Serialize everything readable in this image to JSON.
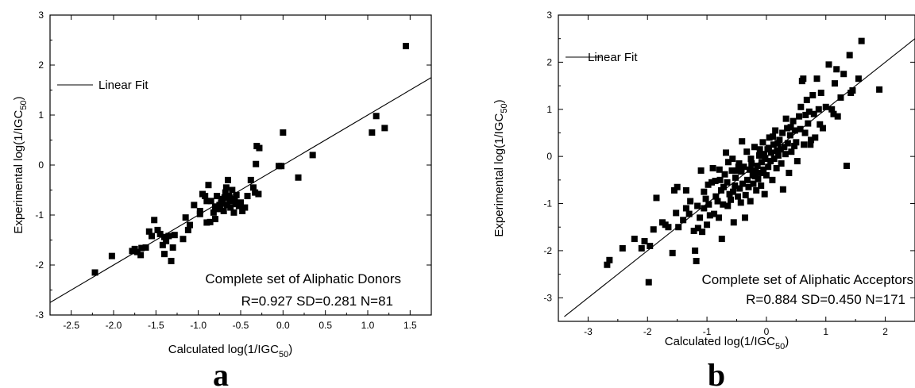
{
  "chart_data": [
    {
      "type": "scatter",
      "panel_label": "a",
      "xlabel": {
        "text": "Calculated log(1/IGC",
        "sub": "50",
        "close": ")"
      },
      "ylabel": {
        "text": "Experimental log(1/IGC",
        "sub": "50",
        "close": ")"
      },
      "xlim": [
        -2.75,
        1.75
      ],
      "ylim": [
        -3,
        3
      ],
      "xticks": [
        -2.5,
        -2.0,
        -1.5,
        -1.0,
        -0.5,
        0.0,
        0.5,
        1.0,
        1.5
      ],
      "xtick_labels": [
        "-2.5",
        "-2.0",
        "-1.5",
        "-1.0",
        "-0.5",
        "0.0",
        "0.5",
        "1.0",
        "1.5"
      ],
      "yticks": [
        -3,
        -2,
        -1,
        0,
        1,
        2,
        3
      ],
      "ytick_labels": [
        "-3",
        "-2",
        "-1",
        "0",
        "1",
        "2",
        "3"
      ],
      "legend": {
        "label": "Linear Fit",
        "position": "top-left"
      },
      "fit_line": {
        "x": [
          -2.75,
          1.75
        ],
        "y": [
          -2.75,
          1.75
        ]
      },
      "annotation": {
        "line1": "Complete set of Aliphatic Donors",
        "line2": "R=0.927 SD=0.281 N=81"
      },
      "points": [
        [
          -2.22,
          -2.15
        ],
        [
          -2.02,
          -1.82
        ],
        [
          -1.78,
          -1.72
        ],
        [
          -1.75,
          -1.68
        ],
        [
          -1.72,
          -1.74
        ],
        [
          -1.68,
          -1.8
        ],
        [
          -1.62,
          -1.65
        ],
        [
          -1.58,
          -1.33
        ],
        [
          -1.55,
          -1.42
        ],
        [
          -1.52,
          -1.1
        ],
        [
          -1.48,
          -1.3
        ],
        [
          -1.45,
          -1.38
        ],
        [
          -1.42,
          -1.6
        ],
        [
          -1.4,
          -1.78
        ],
        [
          -1.38,
          -1.52
        ],
        [
          -1.35,
          -1.42
        ],
        [
          -1.32,
          -1.92
        ],
        [
          -1.3,
          -1.65
        ],
        [
          -1.28,
          -1.4
        ],
        [
          -1.18,
          -1.48
        ],
        [
          -1.15,
          -1.05
        ],
        [
          -1.12,
          -1.3
        ],
        [
          -1.1,
          -1.2
        ],
        [
          -1.05,
          -0.8
        ],
        [
          -0.98,
          -0.92
        ],
        [
          -0.95,
          -0.58
        ],
        [
          -0.92,
          -0.62
        ],
        [
          -0.9,
          -1.15
        ],
        [
          -0.88,
          -0.4
        ],
        [
          -0.85,
          -0.72
        ],
        [
          -0.82,
          -0.95
        ],
        [
          -0.8,
          -1.08
        ],
        [
          -0.78,
          -0.62
        ],
        [
          -0.76,
          -0.88
        ],
        [
          -0.75,
          -0.8
        ],
        [
          -0.73,
          -0.75
        ],
        [
          -0.72,
          -0.68
        ],
        [
          -0.7,
          -0.92
        ],
        [
          -0.68,
          -0.55
        ],
        [
          -0.67,
          -0.45
        ],
        [
          -0.66,
          -0.8
        ],
        [
          -0.65,
          -0.3
        ],
        [
          -0.64,
          -0.62
        ],
        [
          -0.63,
          -0.72
        ],
        [
          -0.62,
          -0.85
        ],
        [
          -0.6,
          -0.5
        ],
        [
          -0.58,
          -0.95
        ],
        [
          -0.56,
          -0.78
        ],
        [
          -0.55,
          -0.6
        ],
        [
          -0.52,
          -0.82
        ],
        [
          -0.5,
          -0.75
        ],
        [
          -0.48,
          -0.92
        ],
        [
          -0.45,
          -0.85
        ],
        [
          -0.42,
          -0.62
        ],
        [
          -0.38,
          -0.3
        ],
        [
          -0.35,
          -0.45
        ],
        [
          -0.33,
          -0.55
        ],
        [
          -0.32,
          0.02
        ],
        [
          -0.31,
          0.38
        ],
        [
          -0.29,
          -0.58
        ],
        [
          -0.28,
          0.34
        ],
        [
          -0.05,
          -0.02
        ],
        [
          -0.02,
          -0.02
        ],
        [
          0.0,
          0.65
        ],
        [
          0.18,
          -0.25
        ],
        [
          0.35,
          0.2
        ],
        [
          1.05,
          0.65
        ],
        [
          1.1,
          0.98
        ],
        [
          1.2,
          0.74
        ],
        [
          1.45,
          2.38
        ],
        [
          -0.98,
          -0.98
        ],
        [
          -0.86,
          -1.14
        ],
        [
          -0.8,
          -0.83
        ],
        [
          -0.74,
          -0.87
        ],
        [
          -0.71,
          -0.77
        ],
        [
          -0.69,
          -0.65
        ],
        [
          -0.61,
          -0.7
        ],
        [
          -0.57,
          -0.67
        ],
        [
          -1.4,
          -1.44
        ],
        [
          -1.67,
          -1.66
        ],
        [
          -0.9,
          -0.72
        ]
      ]
    },
    {
      "type": "scatter",
      "panel_label": "b",
      "xlabel": {
        "text": "Calculated log(1/IGC",
        "sub": "50",
        "close": ")"
      },
      "ylabel": {
        "text": "Experimental log(1/IGC",
        "sub": "50",
        "close": ")"
      },
      "xlim": [
        -3.5,
        2.5
      ],
      "ylim": [
        -3.5,
        3
      ],
      "xticks": [
        -3,
        -2,
        -1,
        0,
        1,
        2
      ],
      "xtick_labels": [
        "-3",
        "-2",
        "-1",
        "0",
        "1",
        "2"
      ],
      "yticks": [
        -3,
        -2,
        -1,
        0,
        1,
        2,
        3
      ],
      "ytick_labels": [
        "-3",
        "-2",
        "-1",
        "0",
        "1",
        "2",
        "3"
      ],
      "legend": {
        "label": "Linear Fit",
        "position": "top-left"
      },
      "fit_line": {
        "x": [
          -3.4,
          2.5
        ],
        "y": [
          -3.4,
          2.5
        ]
      },
      "annotation": {
        "line1": "Complete set of Aliphatic Acceptors",
        "line2": "R=0.884 SD=0.450 N=171"
      },
      "points": [
        [
          -2.68,
          -2.3
        ],
        [
          -2.64,
          -2.2
        ],
        [
          -2.42,
          -1.95
        ],
        [
          -2.22,
          -1.75
        ],
        [
          -2.1,
          -1.95
        ],
        [
          -2.05,
          -1.8
        ],
        [
          -1.98,
          -2.67
        ],
        [
          -1.96,
          -1.9
        ],
        [
          -1.85,
          -0.88
        ],
        [
          -1.7,
          -1.45
        ],
        [
          -1.65,
          -1.5
        ],
        [
          -1.58,
          -2.05
        ],
        [
          -1.55,
          -0.72
        ],
        [
          -1.52,
          -1.2
        ],
        [
          -1.5,
          -0.65
        ],
        [
          -1.48,
          -1.5
        ],
        [
          -1.4,
          -1.35
        ],
        [
          -1.35,
          -0.72
        ],
        [
          -1.3,
          -1.22
        ],
        [
          -1.22,
          -1.58
        ],
        [
          -1.2,
          -2.0
        ],
        [
          -1.18,
          -2.22
        ],
        [
          -1.16,
          -1.05
        ],
        [
          -1.15,
          -1.52
        ],
        [
          -1.12,
          -1.3
        ],
        [
          -1.1,
          -0.3
        ],
        [
          -1.08,
          -1.6
        ],
        [
          -1.05,
          -0.75
        ],
        [
          -1.02,
          -0.9
        ],
        [
          -1.0,
          -1.45
        ],
        [
          -0.98,
          -0.6
        ],
        [
          -0.95,
          -1.25
        ],
        [
          -0.92,
          -0.55
        ],
        [
          -0.9,
          -0.25
        ],
        [
          -0.88,
          -1.22
        ],
        [
          -0.85,
          -0.85
        ],
        [
          -0.82,
          -0.95
        ],
        [
          -0.8,
          -1.3
        ],
        [
          -0.78,
          -0.5
        ],
        [
          -0.76,
          -0.72
        ],
        [
          -0.75,
          -1.75
        ],
        [
          -0.73,
          -1.02
        ],
        [
          -0.72,
          -0.65
        ],
        [
          -0.7,
          -0.38
        ],
        [
          -0.68,
          0.08
        ],
        [
          -0.66,
          -0.55
        ],
        [
          -0.65,
          -1.05
        ],
        [
          -0.62,
          -0.8
        ],
        [
          -0.6,
          -0.92
        ],
        [
          -0.58,
          -0.3
        ],
        [
          -0.56,
          -0.75
        ],
        [
          -0.55,
          -1.4
        ],
        [
          -0.53,
          -0.62
        ],
        [
          -0.52,
          -0.45
        ],
        [
          -0.5,
          -0.3
        ],
        [
          -0.48,
          -0.85
        ],
        [
          -0.46,
          -0.15
        ],
        [
          -0.45,
          -0.68
        ],
        [
          -0.43,
          -0.98
        ],
        [
          -0.42,
          -0.32
        ],
        [
          -0.4,
          -0.58
        ],
        [
          -0.38,
          -0.22
        ],
        [
          -0.36,
          -1.3
        ],
        [
          -0.35,
          -0.82
        ],
        [
          -0.33,
          0.1
        ],
        [
          -0.32,
          -0.5
        ],
        [
          -0.3,
          -0.65
        ],
        [
          -0.28,
          -0.28
        ],
        [
          -0.27,
          -0.95
        ],
        [
          -0.25,
          -0.15
        ],
        [
          -0.23,
          -0.4
        ],
        [
          -0.22,
          -0.58
        ],
        [
          -0.2,
          0.2
        ],
        [
          -0.18,
          -0.3
        ],
        [
          -0.17,
          -0.72
        ],
        [
          -0.15,
          -0.2
        ],
        [
          -0.14,
          -0.48
        ],
        [
          -0.12,
          0.02
        ],
        [
          -0.1,
          -0.35
        ],
        [
          -0.09,
          -0.62
        ],
        [
          -0.08,
          -0.12
        ],
        [
          -0.06,
          0.3
        ],
        [
          -0.05,
          -0.28
        ],
        [
          -0.03,
          -0.8
        ],
        [
          -0.02,
          -0.05
        ],
        [
          0.0,
          -0.4
        ],
        [
          0.02,
          0.15
        ],
        [
          0.03,
          -0.22
        ],
        [
          0.05,
          0.4
        ],
        [
          0.07,
          -0.1
        ],
        [
          0.08,
          0.08
        ],
        [
          0.1,
          -0.5
        ],
        [
          0.12,
          0.25
        ],
        [
          0.13,
          -0.05
        ],
        [
          0.15,
          0.55
        ],
        [
          0.17,
          -0.25
        ],
        [
          0.18,
          0.12
        ],
        [
          0.2,
          0.02
        ],
        [
          0.22,
          0.35
        ],
        [
          0.25,
          -0.15
        ],
        [
          0.27,
          0.5
        ],
        [
          0.28,
          -0.7
        ],
        [
          0.3,
          0.2
        ],
        [
          0.32,
          0.05
        ],
        [
          0.35,
          0.6
        ],
        [
          0.36,
          0.28
        ],
        [
          0.38,
          -0.35
        ],
        [
          0.4,
          0.45
        ],
        [
          0.42,
          0.1
        ],
        [
          0.45,
          0.75
        ],
        [
          0.48,
          0.55
        ],
        [
          0.5,
          0.3
        ],
        [
          0.52,
          -0.1
        ],
        [
          0.55,
          0.85
        ],
        [
          0.57,
          0.58
        ],
        [
          0.58,
          1.05
        ],
        [
          0.6,
          1.6
        ],
        [
          0.62,
          1.65
        ],
        [
          0.63,
          0.25
        ],
        [
          0.65,
          0.5
        ],
        [
          0.68,
          1.2
        ],
        [
          0.7,
          0.7
        ],
        [
          0.72,
          0.95
        ],
        [
          0.75,
          0.35
        ],
        [
          0.78,
          1.3
        ],
        [
          0.8,
          0.9
        ],
        [
          0.82,
          0.4
        ],
        [
          0.85,
          1.65
        ],
        [
          0.88,
          1.0
        ],
        [
          0.9,
          0.68
        ],
        [
          0.92,
          1.35
        ],
        [
          0.95,
          0.6
        ],
        [
          1.0,
          1.05
        ],
        [
          1.05,
          1.95
        ],
        [
          1.1,
          1.0
        ],
        [
          1.13,
          0.9
        ],
        [
          1.15,
          1.55
        ],
        [
          1.18,
          1.85
        ],
        [
          1.2,
          0.85
        ],
        [
          1.3,
          1.75
        ],
        [
          1.35,
          -0.2
        ],
        [
          1.4,
          2.15
        ],
        [
          1.42,
          1.35
        ],
        [
          1.45,
          1.4
        ],
        [
          1.55,
          1.65
        ],
        [
          1.6,
          2.45
        ],
        [
          1.9,
          1.42
        ],
        [
          -1.9,
          -1.55
        ],
        [
          -1.75,
          -1.4
        ],
        [
          -1.35,
          -1.1
        ],
        [
          -1.28,
          -0.95
        ],
        [
          -1.05,
          -1.1
        ],
        [
          -0.97,
          -1.02
        ],
        [
          -0.86,
          -0.52
        ],
        [
          -0.79,
          -0.28
        ],
        [
          -0.64,
          -0.12
        ],
        [
          -0.57,
          -0.05
        ],
        [
          -0.47,
          -0.22
        ],
        [
          -0.41,
          0.32
        ],
        [
          -0.26,
          -0.05
        ],
        [
          -0.19,
          -0.42
        ],
        [
          -0.11,
          0.15
        ],
        [
          -0.04,
          0.05
        ],
        [
          0.04,
          0.18
        ],
        [
          0.11,
          0.42
        ],
        [
          0.19,
          0.28
        ],
        [
          0.24,
          0.15
        ],
        [
          0.33,
          0.8
        ],
        [
          0.41,
          0.62
        ],
        [
          0.47,
          0.22
        ],
        [
          0.66,
          0.88
        ],
        [
          0.74,
          0.25
        ],
        [
          1.25,
          1.25
        ]
      ]
    }
  ]
}
